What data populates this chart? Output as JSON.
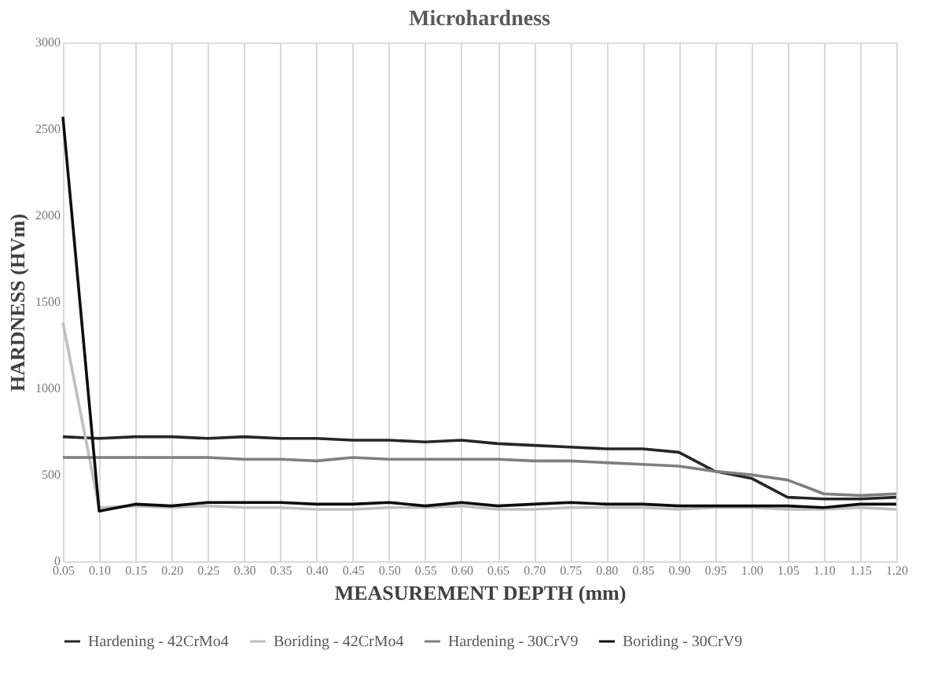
{
  "chart_data": {
    "type": "line",
    "title": "Microhardness",
    "xlabel": "MEASUREMENT DEPTH (mm)",
    "ylabel": "HARDNESS (HVm)",
    "categories": [
      "0.05",
      "0.10",
      "0.15",
      "0.20",
      "0.25",
      "0.30",
      "0.35",
      "0.40",
      "0.45",
      "0.50",
      "0.55",
      "0.60",
      "0.65",
      "0.70",
      "0.75",
      "0.80",
      "0.85",
      "0.90",
      "0.95",
      "1.00",
      "1.05",
      "1.10",
      "1.15",
      "1.20"
    ],
    "series": [
      {
        "name": "Hardening - 42CrMo4",
        "color": "#262626",
        "values": [
          720,
          710,
          720,
          720,
          710,
          720,
          710,
          710,
          700,
          700,
          690,
          700,
          680,
          670,
          660,
          650,
          650,
          630,
          520,
          480,
          370,
          360,
          360,
          370
        ]
      },
      {
        "name": "Boriding - 42CrMo4",
        "color": "#bfbfbf",
        "values": [
          1380,
          310,
          320,
          310,
          320,
          310,
          310,
          300,
          300,
          310,
          310,
          320,
          300,
          300,
          310,
          310,
          310,
          300,
          310,
          310,
          300,
          300,
          310,
          300
        ]
      },
      {
        "name": "Hardening - 30CrV9",
        "color": "#7f7f7f",
        "values": [
          600,
          600,
          600,
          600,
          600,
          590,
          590,
          580,
          600,
          590,
          590,
          590,
          590,
          580,
          580,
          570,
          560,
          550,
          520,
          500,
          470,
          390,
          380,
          390
        ]
      },
      {
        "name": "Boriding - 30CrV9",
        "color": "#0d0d0d",
        "values": [
          2570,
          290,
          330,
          320,
          340,
          340,
          340,
          330,
          330,
          340,
          320,
          340,
          320,
          330,
          340,
          330,
          330,
          320,
          320,
          320,
          320,
          310,
          330,
          330
        ]
      }
    ],
    "ylim": [
      0,
      3000
    ],
    "yticks": [
      0,
      500,
      1000,
      1500,
      2000,
      2500,
      3000
    ],
    "grid": "x",
    "legend": "bottom",
    "marker": "none",
    "line_style": "solid"
  }
}
